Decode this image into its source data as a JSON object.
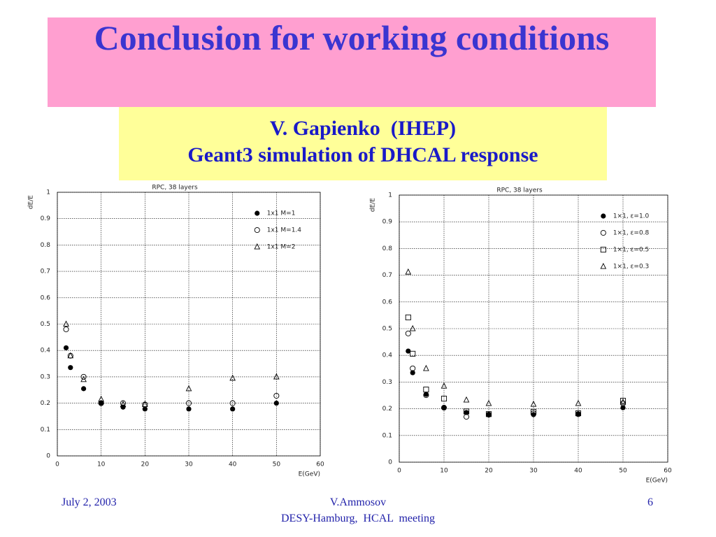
{
  "slide": {
    "title": "Conclusion for working conditions",
    "subtitle": [
      "V. Gapienko  (IHEP)",
      "Geant3 simulation of DHCAL response"
    ]
  },
  "footer": {
    "date": "July 2, 2003",
    "author": "V.Ammosov",
    "meeting": "DESY-Hamburg,  HCAL  meeting",
    "page": "6"
  },
  "chart_data": [
    {
      "type": "scatter",
      "title": "RPC, 38 layers",
      "x_label": "E(GeV)",
      "y_label": "dE/E",
      "x": [
        2,
        3,
        6,
        10,
        15,
        20,
        30,
        40,
        50
      ],
      "series": [
        {
          "name": "1x1 M=1",
          "marker": "filled-circle",
          "color": "#000000",
          "values": [
            0.41,
            0.335,
            0.255,
            0.2,
            0.185,
            0.178,
            0.178,
            0.178,
            0.2
          ]
        },
        {
          "name": "1x1 M=1.4",
          "marker": "open-circle",
          "color": "#000000",
          "values": [
            0.48,
            0.38,
            0.3,
            0.2,
            0.2,
            0.195,
            0.2,
            0.2,
            0.228
          ]
        },
        {
          "name": "1x1 M=2",
          "marker": "open-triangle",
          "color": "#000000",
          "values": [
            0.5,
            0.38,
            0.29,
            0.215,
            0.195,
            0.195,
            0.255,
            0.295,
            0.3
          ]
        }
      ],
      "xlim": [
        0,
        60
      ],
      "xticks": [
        0,
        10,
        20,
        30,
        40,
        50,
        60
      ],
      "ylim": [
        0,
        1
      ],
      "yticks": [
        0,
        0.1,
        0.2,
        0.3,
        0.4,
        0.5,
        0.6,
        0.7,
        0.8,
        0.9,
        1
      ],
      "grid": true,
      "legend": "upper right"
    },
    {
      "type": "scatter",
      "title": "RPC, 38 layers",
      "x_label": "E(GeV)",
      "y_label": "dE/E",
      "x": [
        2,
        3,
        6,
        10,
        15,
        20,
        30,
        40,
        50
      ],
      "series": [
        {
          "name": "1×1, ε=1.0",
          "marker": "filled-circle",
          "color": "#000000",
          "values": [
            0.416,
            0.335,
            0.254,
            0.204,
            0.186,
            0.178,
            0.178,
            0.18,
            0.204
          ]
        },
        {
          "name": "1×1, ε=0.8",
          "marker": "open-circle",
          "color": "#000000",
          "values": [
            0.482,
            0.351,
            0.251,
            0.204,
            0.17,
            0.178,
            0.183,
            0.18,
            0.22
          ]
        },
        {
          "name": "1×1, ε=0.5",
          "marker": "open-square",
          "color": "#000000",
          "values": [
            0.542,
            0.406,
            0.272,
            0.238,
            0.19,
            0.18,
            0.188,
            0.183,
            0.23
          ]
        },
        {
          "name": "1×1, ε=0.3",
          "marker": "open-triangle",
          "color": "#000000",
          "values": [
            0.712,
            0.5,
            0.351,
            0.285,
            0.233,
            0.22,
            0.217,
            0.22,
            0.225
          ]
        }
      ],
      "xlim": [
        0,
        60
      ],
      "xticks": [
        0,
        10,
        20,
        30,
        40,
        50,
        60
      ],
      "ylim": [
        0,
        1
      ],
      "yticks": [
        0,
        0.1,
        0.2,
        0.3,
        0.4,
        0.5,
        0.6,
        0.7,
        0.8,
        0.9,
        1
      ],
      "grid": true,
      "legend": "upper right"
    }
  ]
}
